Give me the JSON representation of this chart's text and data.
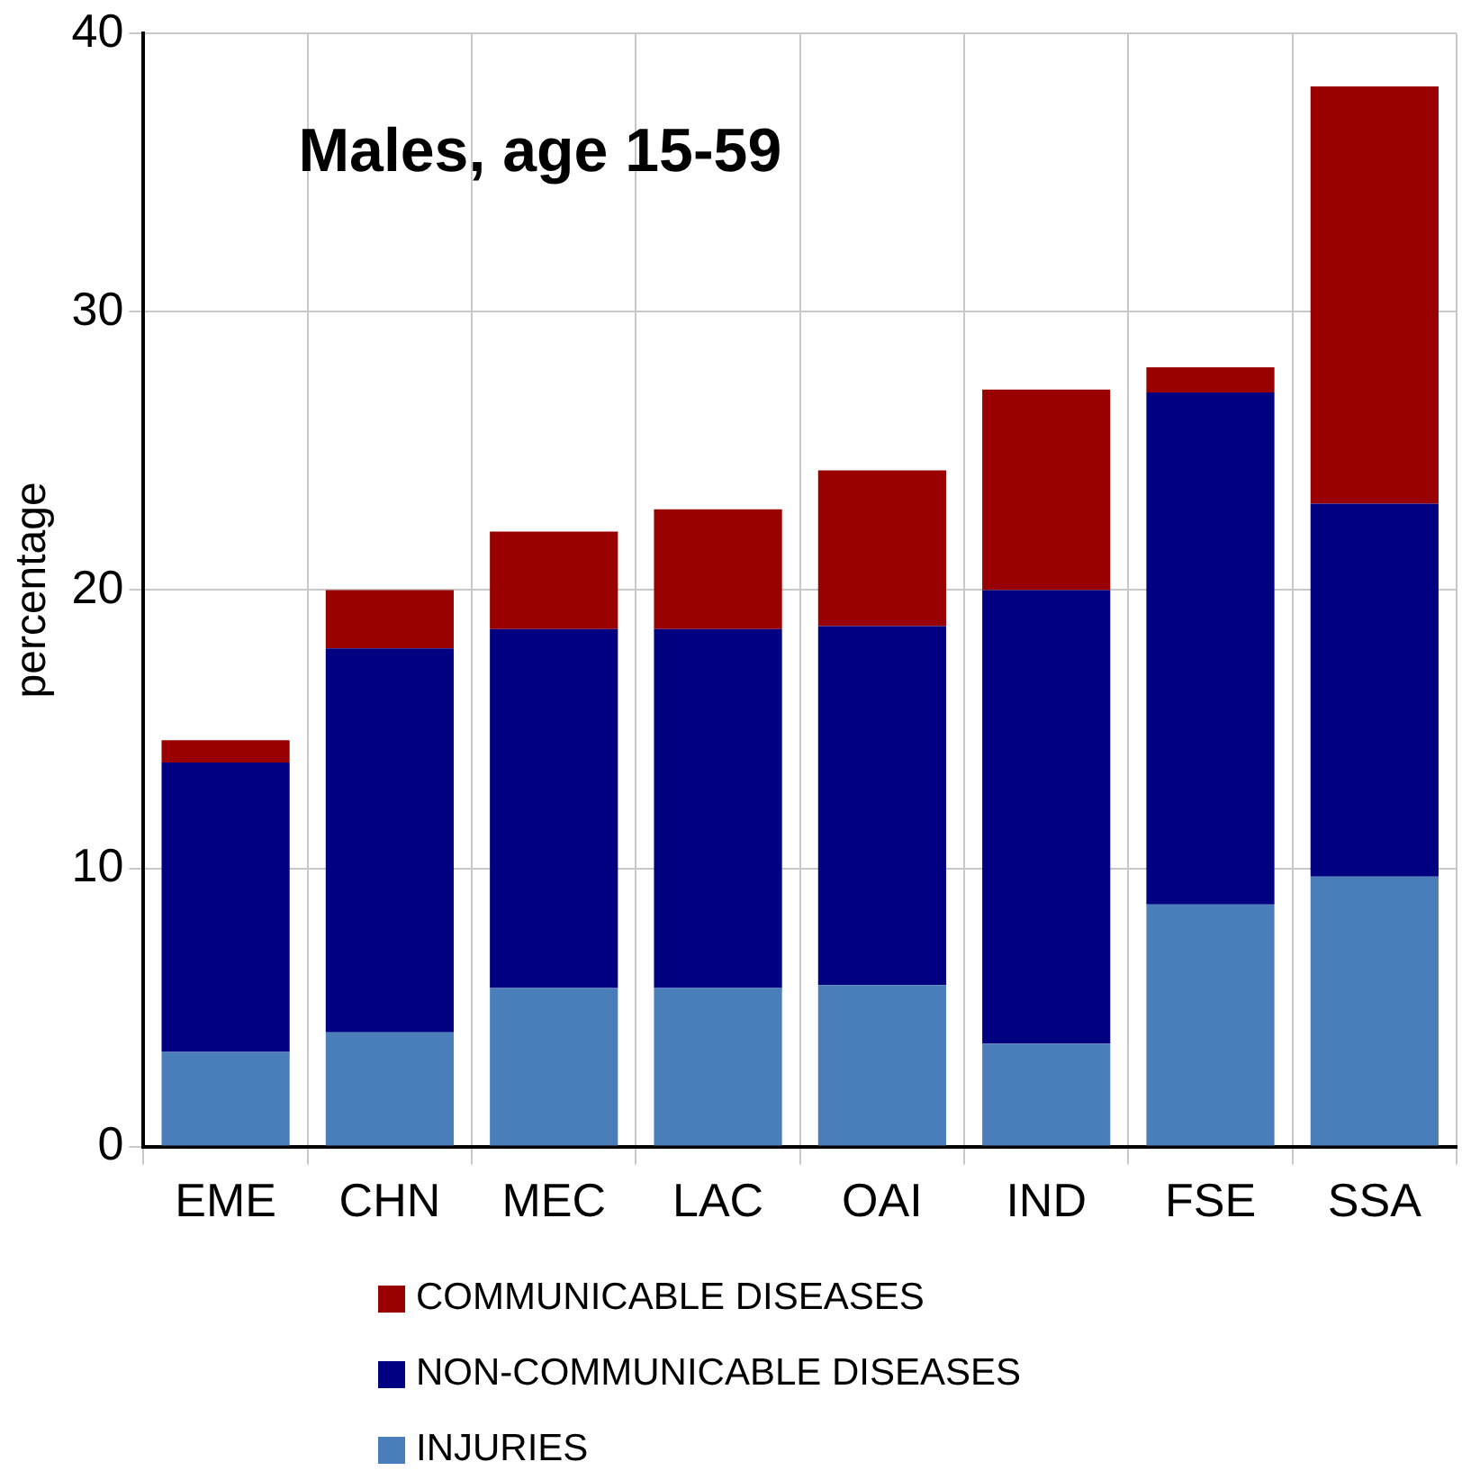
{
  "chart_data": {
    "type": "bar",
    "title": "Males, age 15-59",
    "ylabel": "percentage",
    "categories": [
      "EME",
      "CHN",
      "MEC",
      "LAC",
      "OAI",
      "IND",
      "FSE",
      "SSA"
    ],
    "stacked": true,
    "ylim": [
      0,
      40
    ],
    "yticks": [
      0,
      10,
      20,
      30,
      40
    ],
    "grid": true,
    "legend": "bottom",
    "series": [
      {
        "name": "INJURIES",
        "color": "#4a7ebb",
        "values": [
          3.4,
          4.1,
          5.7,
          5.7,
          5.8,
          3.7,
          8.7,
          9.7
        ]
      },
      {
        "name": "NON-COMMUNICABLE DISEASES",
        "color": "#000080",
        "values": [
          10.4,
          13.8,
          12.9,
          12.9,
          12.9,
          16.3,
          18.4,
          13.4
        ]
      },
      {
        "name": "COMMUNICABLE DISEASES",
        "color": "#990000",
        "values": [
          0.8,
          2.1,
          3.5,
          4.3,
          5.6,
          7.2,
          0.9,
          15.0
        ]
      }
    ]
  }
}
